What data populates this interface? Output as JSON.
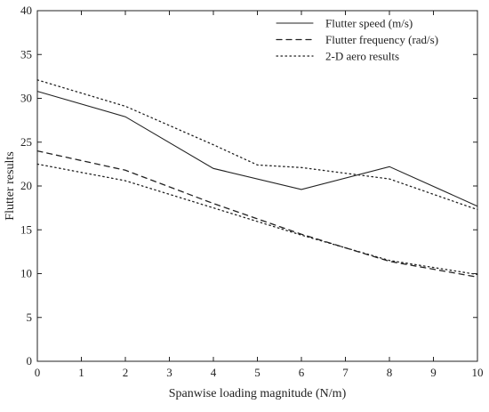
{
  "chart_data": {
    "type": "line",
    "xlabel": "Spanwise loading magnitude (N/m)",
    "ylabel": "Flutter results",
    "xlim": [
      0,
      10
    ],
    "ylim": [
      0,
      40
    ],
    "xticks": [
      "0",
      "1",
      "2",
      "3",
      "4",
      "5",
      "6",
      "7",
      "8",
      "9",
      "10"
    ],
    "yticks": [
      "0",
      "5",
      "10",
      "15",
      "20",
      "25",
      "30",
      "35",
      "40"
    ],
    "grid": false,
    "legend_position": "top-right",
    "series": [
      {
        "name": "Flutter speed (m/s)",
        "style": "solid",
        "x": [
          0,
          2,
          4,
          6,
          8,
          10
        ],
        "y": [
          30.8,
          27.9,
          22.0,
          19.6,
          22.2,
          17.7
        ]
      },
      {
        "name": "Flutter frequency (rad/s)",
        "style": "dashed",
        "x": [
          0,
          2,
          4,
          6,
          8,
          10
        ],
        "y": [
          24.0,
          21.8,
          18.0,
          14.5,
          11.4,
          9.6
        ]
      },
      {
        "name": "2-D aero results",
        "style": "dotted",
        "x": [
          0,
          2,
          4,
          5,
          6,
          8,
          10
        ],
        "y": [
          32.1,
          29.1,
          24.7,
          22.4,
          22.1,
          20.8,
          17.3
        ]
      },
      {
        "name": "",
        "style": "dotted",
        "x": [
          0,
          2,
          4,
          6,
          8,
          10
        ],
        "y": [
          22.5,
          20.6,
          17.5,
          14.4,
          11.5,
          9.9
        ]
      }
    ]
  }
}
